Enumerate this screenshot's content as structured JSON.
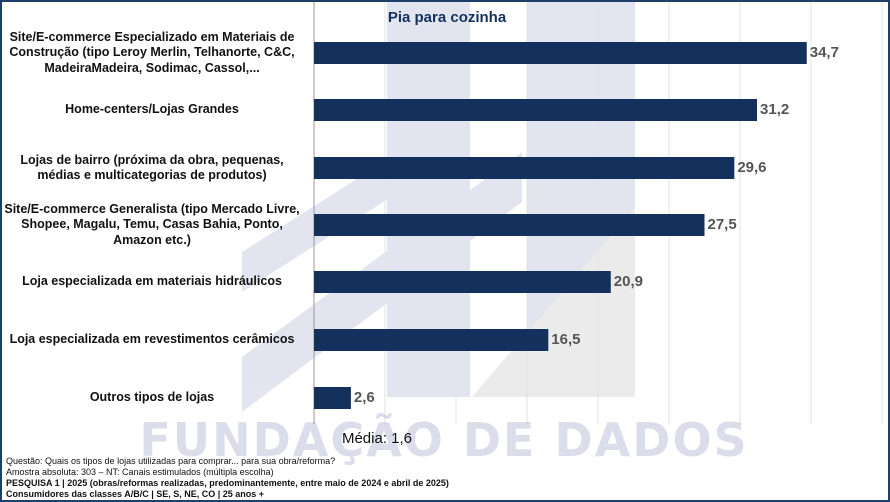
{
  "chart_data": {
    "type": "bar",
    "orientation": "horizontal",
    "title": "Pia para cozinha",
    "categories": [
      "Site/E-commerce Especializado em Materiais de Construção (tipo Leroy Merlin, Telhanorte, C&C, MadeiraMadeira, Sodimac, Cassol,...",
      "Home-centers/Lojas Grandes",
      "Lojas de bairro (próxima da obra, pequenas, médias e multicategorias de produtos)",
      "Site/E-commerce Generalista (tipo Mercado Livre, Shopee, Magalu, Temu, Casas Bahia, Ponto, Amazon etc.)",
      "Loja especializada em materiais hidráulicos",
      "Loja especializada em revestimentos cerâmicos",
      "Outros tipos de lojas"
    ],
    "values": [
      34.7,
      31.2,
      29.6,
      27.5,
      20.9,
      16.5,
      2.6
    ],
    "value_labels": [
      "34,7",
      "31,2",
      "29,6",
      "27,5",
      "20,9",
      "16,5",
      "2,6"
    ],
    "xlim": [
      0,
      100
    ],
    "grid": true,
    "bar_color": "#13315c",
    "mean_label": "Média: 1,6"
  },
  "watermark": "FUNDAÇÃO DE DADOS",
  "footer": {
    "question": "Questão: Quais os tipos de lojas utilizadas para comprar... para sua obra/reforma?",
    "sample": "Amostra absoluta: 303 – NT: Canais estimulados (múltipla escolha)",
    "survey": "PESQUISA 1 | 2025 (obras/reformas realizadas, predominantemente, entre maio de 2024 e abril de 2025)",
    "audience": "Consumidores das classes A/B/C | SE, S, NE, CO | 25 anos +"
  }
}
